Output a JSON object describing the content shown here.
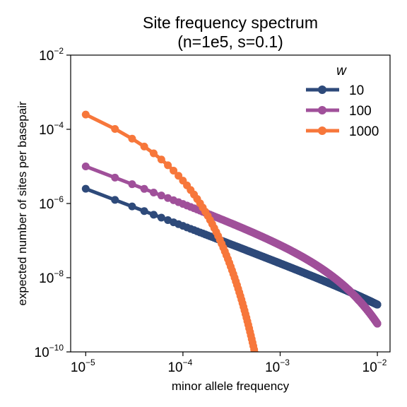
{
  "chart_data": {
    "type": "line",
    "title_lines": [
      "Site frequency spectrum",
      "(n=1e5, s=0.1)"
    ],
    "xlabel": "minor allele frequency",
    "ylabel": "expected number of sites per basepair",
    "xscale": "log",
    "yscale": "log",
    "xlim": [
      7e-06,
      0.0135
    ],
    "ylim": [
      1e-10,
      0.01
    ],
    "x_ticks": [
      {
        "value": 1e-05,
        "base": "10",
        "exp": "−5"
      },
      {
        "value": 0.0001,
        "base": "10",
        "exp": "−4"
      },
      {
        "value": 0.001,
        "base": "10",
        "exp": "−3"
      },
      {
        "value": 0.01,
        "base": "10",
        "exp": "−2"
      }
    ],
    "y_ticks": [
      {
        "value": 1e-10,
        "base": "10",
        "exp": "−10"
      },
      {
        "value": 1e-08,
        "base": "10",
        "exp": "−8"
      },
      {
        "value": 1e-06,
        "base": "10",
        "exp": "−6"
      },
      {
        "value": 0.0001,
        "base": "10",
        "exp": "−4"
      },
      {
        "value": 0.01,
        "base": "10",
        "exp": "−2"
      }
    ],
    "grid": false,
    "legend": {
      "title": "w",
      "placement": "top-right"
    },
    "series": [
      {
        "name": "10",
        "color": "#2e4a7a",
        "x_min": 1e-05,
        "x_max": 0.01,
        "y_at_min": 2.5e-06,
        "slope": -1,
        "cutoff": 0.035
      },
      {
        "name": "100",
        "color": "#a0509a",
        "x_min": 1e-05,
        "x_max": 0.01,
        "y_at_min": 1e-05,
        "slope": -1,
        "cutoff": 0.0035
      },
      {
        "name": "1000",
        "color": "#f7773b",
        "x_min": 1e-05,
        "x_max": 0.01,
        "y_at_min": 0.00025,
        "slope": -1,
        "cutoff": 5e-05
      }
    ]
  }
}
